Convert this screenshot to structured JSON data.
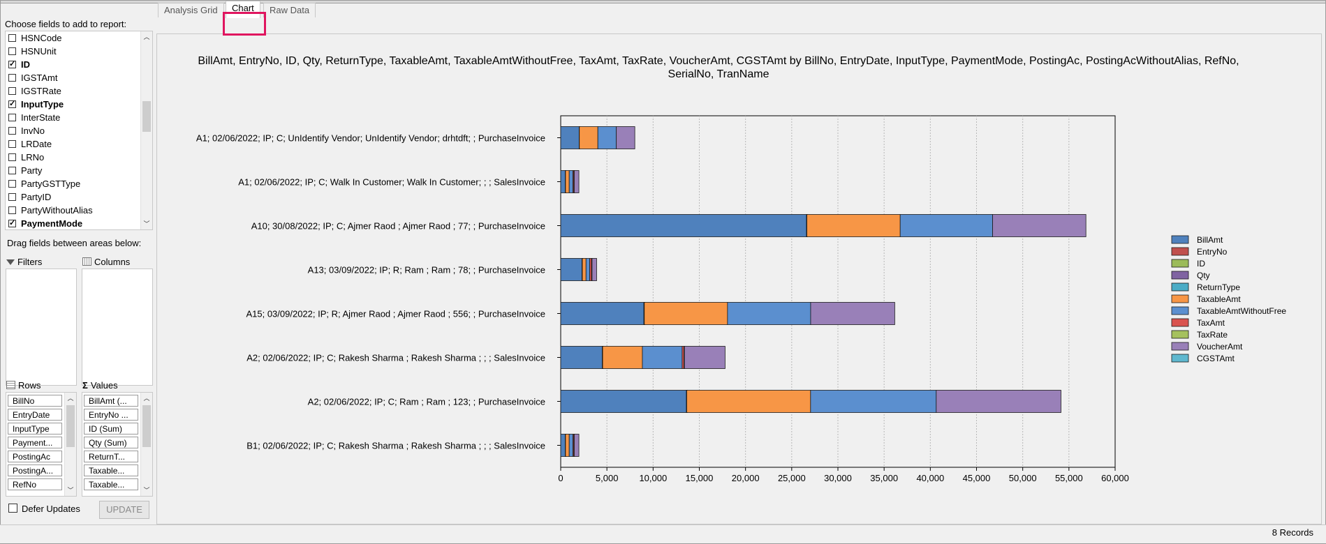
{
  "field_list": {
    "header": "Choose fields to add to report:",
    "items": [
      {
        "label": "HSNCode",
        "checked": false,
        "bold": false
      },
      {
        "label": "HSNUnit",
        "checked": false,
        "bold": false
      },
      {
        "label": "ID",
        "checked": true,
        "bold": true
      },
      {
        "label": "IGSTAmt",
        "checked": false,
        "bold": false
      },
      {
        "label": "IGSTRate",
        "checked": false,
        "bold": false
      },
      {
        "label": "InputType",
        "checked": true,
        "bold": true
      },
      {
        "label": "InterState",
        "checked": false,
        "bold": false
      },
      {
        "label": "InvNo",
        "checked": false,
        "bold": false
      },
      {
        "label": "LRDate",
        "checked": false,
        "bold": false
      },
      {
        "label": "LRNo",
        "checked": false,
        "bold": false
      },
      {
        "label": "Party",
        "checked": false,
        "bold": false
      },
      {
        "label": "PartyGSTType",
        "checked": false,
        "bold": false
      },
      {
        "label": "PartyID",
        "checked": false,
        "bold": false
      },
      {
        "label": "PartyWithoutAlias",
        "checked": false,
        "bold": false
      },
      {
        "label": "PaymentMode",
        "checked": true,
        "bold": true
      }
    ]
  },
  "areas": {
    "drag_label": "Drag fields between areas below:",
    "filters_label": "Filters",
    "columns_label": "Columns",
    "rows_label": "Rows",
    "values_label": "Values",
    "rows": [
      "BillNo",
      "EntryDate",
      "InputType",
      "Payment...",
      "PostingAc",
      "PostingA...",
      "RefNo"
    ],
    "values": [
      "BillAmt (...",
      "EntryNo ...",
      "ID (Sum)",
      "Qty (Sum)",
      "ReturnT...",
      "Taxable...",
      "Taxable..."
    ]
  },
  "defer_label": "Defer Updates",
  "update_label": "UPDATE",
  "tabs": [
    "Analysis Grid",
    "Chart",
    "Raw Data"
  ],
  "status": "8 Records",
  "chart_data": {
    "type": "bar",
    "orientation": "horizontal",
    "stacked": true,
    "title": "BillAmt, EntryNo, ID, Qty, ReturnType, TaxableAmt, TaxableAmtWithoutFree, TaxAmt, TaxRate, VoucherAmt, CGSTAmt by BillNo, EntryDate, InputType, PaymentMode, PostingAc, PostingAcWithoutAlias, RefNo, SerialNo, TranName",
    "xlim": [
      0,
      60000
    ],
    "xticks": [
      "0",
      "5,000",
      "10,000",
      "15,000",
      "20,000",
      "25,000",
      "30,000",
      "35,000",
      "40,000",
      "45,000",
      "50,000",
      "55,000",
      "60,000"
    ],
    "legend_position": "right",
    "categories": [
      "A1; 02/06/2022; IP; C; UnIdentify Vendor; UnIdentify Vendor; drhtdft; ; PurchaseInvoice",
      "A1; 02/06/2022; IP; C; Walk In Customer; Walk In Customer; ; ; SalesInvoice",
      "A10; 30/08/2022; IP; C; Ajmer Raod ; Ajmer Raod ; 77; ; PurchaseInvoice",
      "A13; 03/09/2022; IP; R; Ram ; Ram ; 78; ; PurchaseInvoice",
      "A15; 03/09/2022; IP; R; Ajmer Raod ; Ajmer Raod ; 556; ; PurchaseInvoice",
      "A2; 02/06/2022; IP; C; Rakesh Sharma ; Rakesh Sharma ; ; ; SalesInvoice",
      "A2; 02/06/2022; IP; C; Ram ; Ram ; 123; ; PurchaseInvoice",
      "B1; 02/06/2022; IP; C; Rakesh Sharma ; Rakesh Sharma ; ; ; SalesInvoice"
    ],
    "series": [
      {
        "name": "BillAmt",
        "color": "#4f81bd",
        "values": [
          2000,
          500,
          26600,
          2300,
          9000,
          4500,
          13600,
          500
        ]
      },
      {
        "name": "EntryNo",
        "color": "#c0504d",
        "values": [
          10,
          10,
          20,
          20,
          30,
          20,
          20,
          10
        ]
      },
      {
        "name": "ID",
        "color": "#9bbb59",
        "values": [
          5,
          5,
          10,
          10,
          10,
          10,
          10,
          5
        ]
      },
      {
        "name": "Qty",
        "color": "#8064a2",
        "values": [
          5,
          5,
          10,
          10,
          10,
          10,
          10,
          5
        ]
      },
      {
        "name": "ReturnType",
        "color": "#4bacc6",
        "values": [
          0,
          0,
          0,
          0,
          0,
          0,
          0,
          0
        ]
      },
      {
        "name": "TaxableAmt",
        "color": "#f79646",
        "values": [
          2000,
          400,
          10100,
          400,
          9000,
          4300,
          13400,
          400
        ]
      },
      {
        "name": "TaxableAmtWithoutFree",
        "color": "#5b8fcf",
        "values": [
          2000,
          400,
          10000,
          400,
          9000,
          4300,
          13600,
          400
        ]
      },
      {
        "name": "TaxAmt",
        "color": "#d9534f",
        "values": [
          0,
          100,
          0,
          200,
          0,
          200,
          0,
          100
        ]
      },
      {
        "name": "TaxRate",
        "color": "#a5c15e",
        "values": [
          0,
          50,
          0,
          50,
          0,
          50,
          0,
          50
        ]
      },
      {
        "name": "VoucherAmt",
        "color": "#9980b8",
        "values": [
          2000,
          500,
          10100,
          500,
          9100,
          4400,
          13500,
          500
        ]
      },
      {
        "name": "CGSTAmt",
        "color": "#5fb8cf",
        "values": [
          0,
          0,
          0,
          0,
          0,
          0,
          0,
          0
        ]
      }
    ]
  }
}
